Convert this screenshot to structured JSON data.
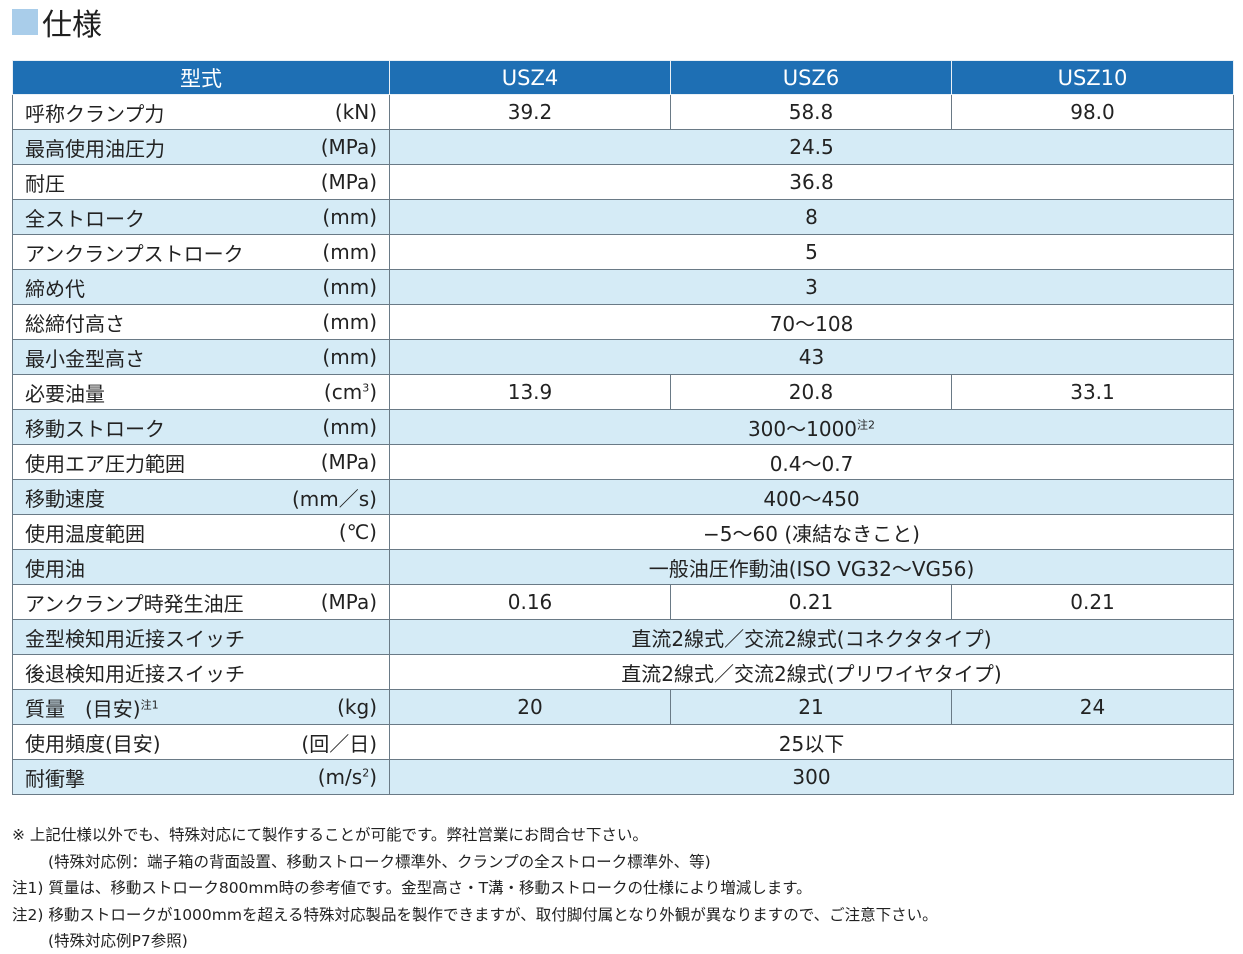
{
  "section_title": "仕様",
  "table": {
    "header": [
      "型式",
      "USZ4",
      "USZ6",
      "USZ10"
    ],
    "rows": [
      {
        "label": "呼称クランプ力",
        "unit": "(kN)",
        "values": [
          "39.2",
          "58.8",
          "98.0"
        ]
      },
      {
        "label": "最高使用油圧力",
        "unit": "(MPa)",
        "value": "24.5"
      },
      {
        "label": "耐圧",
        "unit": "(MPa)",
        "value": "36.8"
      },
      {
        "label": "全ストローク",
        "unit": "(mm)",
        "value": "8"
      },
      {
        "label": "アンクランプストローク",
        "unit": "(mm)",
        "value": "5"
      },
      {
        "label": "締め代",
        "unit": "(mm)",
        "value": "3"
      },
      {
        "label": "総締付高さ",
        "unit": "(mm)",
        "value": "70～108"
      },
      {
        "label": "最小金型高さ",
        "unit": "(mm)",
        "value": "43"
      },
      {
        "label": "必要油量",
        "unit": "(cm",
        "unit_sup": "3",
        "unit_tail": ")",
        "values": [
          "13.9",
          "20.8",
          "33.1"
        ]
      },
      {
        "label": "移動ストローク",
        "unit": "(mm)",
        "value": "300～1000",
        "value_sup": "注2"
      },
      {
        "label": "使用エア圧力範囲",
        "unit": "(MPa)",
        "value": "0.4～0.7"
      },
      {
        "label": "移動速度",
        "unit": "(mm／s)",
        "value": "400～450"
      },
      {
        "label": "使用温度範囲",
        "unit": "(℃)",
        "value": "−5～60 (凍結なきこと)"
      },
      {
        "label": "使用油",
        "unit": "",
        "value": "一般油圧作動油(ISO VG32～VG56)"
      },
      {
        "label": "アンクランプ時発生油圧",
        "unit": "(MPa)",
        "values": [
          "0.16",
          "0.21",
          "0.21"
        ]
      },
      {
        "label": "金型検知用近接スイッチ",
        "unit": "",
        "value": "直流2線式／交流2線式(コネクタタイプ)"
      },
      {
        "label": "後退検知用近接スイッチ",
        "unit": "",
        "value": "直流2線式／交流2線式(プリワイヤタイプ)"
      },
      {
        "label": "質量　(目安)",
        "label_sup": "注1",
        "unit": "(kg)",
        "values": [
          "20",
          "21",
          "24"
        ]
      },
      {
        "label": "使用頻度(目安)",
        "unit": "(回／日)",
        "value": "25以下"
      },
      {
        "label": "耐衝撃",
        "unit": "(m/s",
        "unit_sup": "2",
        "unit_tail": ")",
        "value": "300"
      }
    ]
  },
  "notes": [
    "※ 上記仕様以外でも、特殊対応にて製作することが可能です。弊社営業にお問合せ下さい。",
    "(特殊対応例：端子箱の背面設置、移動ストローク標準外、クランプの全ストローク標準外、等)",
    "注1) 質量は、移動ストローク800mm時の参考値です。金型高さ・T溝・移動ストロークの仕様により増減します。",
    "注2) 移動ストロークが1000mmを超える特殊対応製品を製作できますが、取付脚付属となり外観が異なりますので、ご注意下さい。",
    "(特殊対応例P7参照)"
  ]
}
